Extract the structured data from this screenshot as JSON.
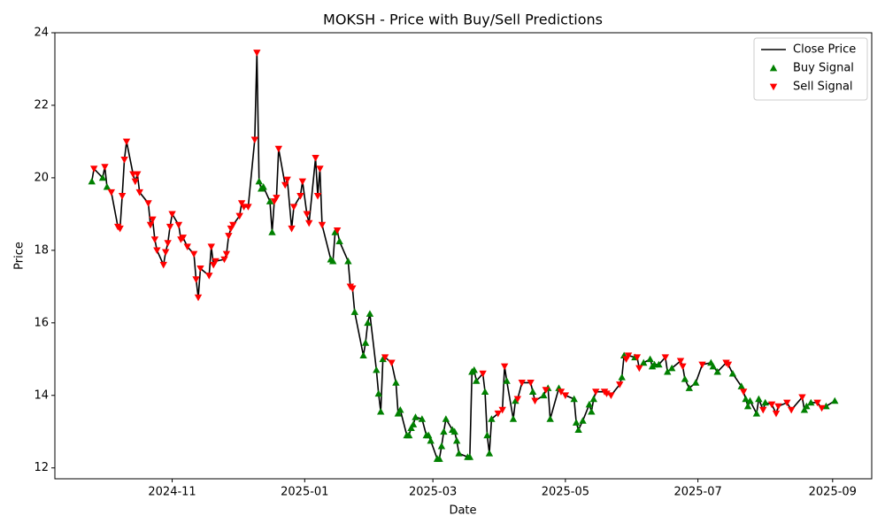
{
  "chart_data": {
    "type": "line",
    "title": "MOKSH - Price with Buy/Sell Predictions",
    "x_label": "Date",
    "y_label": "Price",
    "xlim": [
      "2024-09-08",
      "2025-09-19"
    ],
    "ylim": [
      11.7,
      24
    ],
    "xticks": [
      {
        "value": "2024-11-01",
        "label": "2024-11"
      },
      {
        "value": "2025-01-01",
        "label": "2025-01"
      },
      {
        "value": "2025-03-01",
        "label": "2025-03"
      },
      {
        "value": "2025-05-01",
        "label": "2025-05"
      },
      {
        "value": "2025-07-01",
        "label": "2025-07"
      },
      {
        "value": "2025-09-01",
        "label": "2025-09"
      }
    ],
    "yticks": [
      12,
      14,
      16,
      18,
      20,
      22,
      24
    ],
    "grid": false,
    "legend": "upper right",
    "series": [
      {
        "name": "Close Price",
        "color": "#000000",
        "marker": "line",
        "x": [
          "2024-09-25",
          "2024-09-26",
          "2024-09-30",
          "2024-10-01",
          "2024-10-02",
          "2024-10-04",
          "2024-10-07",
          "2024-10-08",
          "2024-10-09",
          "2024-10-10",
          "2024-10-11",
          "2024-10-14",
          "2024-10-15",
          "2024-10-16",
          "2024-10-17",
          "2024-10-21",
          "2024-10-22",
          "2024-10-23",
          "2024-10-24",
          "2024-10-25",
          "2024-10-28",
          "2024-10-29",
          "2024-10-30",
          "2024-10-31",
          "2024-11-01",
          "2024-11-04",
          "2024-11-05",
          "2024-11-06",
          "2024-11-08",
          "2024-11-11",
          "2024-11-12",
          "2024-11-13",
          "2024-11-14",
          "2024-11-18",
          "2024-11-19",
          "2024-11-20",
          "2024-11-21",
          "2024-11-25",
          "2024-11-26",
          "2024-11-27",
          "2024-11-28",
          "2024-11-29",
          "2024-12-02",
          "2024-12-03",
          "2024-12-04",
          "2024-12-06",
          "2024-12-09",
          "2024-12-10",
          "2024-12-11",
          "2024-12-12",
          "2024-12-13",
          "2024-12-16",
          "2024-12-17",
          "2024-12-18",
          "2024-12-19",
          "2024-12-20",
          "2024-12-23",
          "2024-12-24",
          "2024-12-26",
          "2024-12-27",
          "2024-12-30",
          "2024-12-31",
          "2025-01-02",
          "2025-01-03",
          "2025-01-06",
          "2025-01-07",
          "2025-01-08",
          "2025-01-09",
          "2025-01-13",
          "2025-01-14",
          "2025-01-15",
          "2025-01-16",
          "2025-01-17",
          "2025-01-21",
          "2025-01-22",
          "2025-01-23",
          "2025-01-24",
          "2025-01-28",
          "2025-01-29",
          "2025-01-30",
          "2025-01-31",
          "2025-02-03",
          "2025-02-04",
          "2025-02-05",
          "2025-02-06",
          "2025-02-07",
          "2025-02-10",
          "2025-02-12",
          "2025-02-13",
          "2025-02-14",
          "2025-02-17",
          "2025-02-18",
          "2025-02-19",
          "2025-02-20",
          "2025-02-21",
          "2025-02-24",
          "2025-02-26",
          "2025-02-27",
          "2025-02-28",
          "2025-03-03",
          "2025-03-04",
          "2025-03-05",
          "2025-03-06",
          "2025-03-07",
          "2025-03-10",
          "2025-03-11",
          "2025-03-12",
          "2025-03-13",
          "2025-03-17",
          "2025-03-18",
          "2025-03-19",
          "2025-03-20",
          "2025-03-21",
          "2025-03-24",
          "2025-03-25",
          "2025-03-26",
          "2025-03-27",
          "2025-03-28",
          "2025-03-31",
          "2025-04-02",
          "2025-04-03",
          "2025-04-04",
          "2025-04-07",
          "2025-04-08",
          "2025-04-09",
          "2025-04-11",
          "2025-04-15",
          "2025-04-16",
          "2025-04-17",
          "2025-04-21",
          "2025-04-22",
          "2025-04-23",
          "2025-04-24",
          "2025-04-28",
          "2025-04-29",
          "2025-05-01",
          "2025-05-05",
          "2025-05-06",
          "2025-05-07",
          "2025-05-09",
          "2025-05-12",
          "2025-05-13",
          "2025-05-14",
          "2025-05-15",
          "2025-05-19",
          "2025-05-20",
          "2025-05-22",
          "2025-05-26",
          "2025-05-27",
          "2025-05-28",
          "2025-05-29",
          "2025-05-30",
          "2025-06-02",
          "2025-06-03",
          "2025-06-04",
          "2025-06-06",
          "2025-06-09",
          "2025-06-10",
          "2025-06-11",
          "2025-06-13",
          "2025-06-16",
          "2025-06-17",
          "2025-06-19",
          "2025-06-23",
          "2025-06-24",
          "2025-06-25",
          "2025-06-27",
          "2025-06-30",
          "2025-07-03",
          "2025-07-07",
          "2025-07-08",
          "2025-07-10",
          "2025-07-14",
          "2025-07-15",
          "2025-07-17",
          "2025-07-21",
          "2025-07-22",
          "2025-07-23",
          "2025-07-24",
          "2025-07-25",
          "2025-07-28",
          "2025-07-29",
          "2025-07-31",
          "2025-08-01",
          "2025-08-04",
          "2025-08-06",
          "2025-08-07",
          "2025-08-11",
          "2025-08-13",
          "2025-08-18",
          "2025-08-19",
          "2025-08-20",
          "2025-08-22",
          "2025-08-25",
          "2025-08-27",
          "2025-08-29",
          "2025-09-02"
        ],
        "values": [
          19.9,
          20.25,
          20.0,
          20.3,
          19.75,
          19.6,
          18.65,
          18.6,
          19.5,
          20.5,
          21.0,
          20.1,
          19.9,
          20.1,
          19.6,
          19.3,
          18.7,
          18.85,
          18.3,
          18.0,
          17.6,
          17.95,
          18.2,
          18.65,
          19.0,
          18.7,
          18.3,
          18.35,
          18.1,
          17.9,
          17.2,
          16.7,
          17.5,
          17.3,
          18.1,
          17.6,
          17.7,
          17.75,
          17.9,
          18.4,
          18.6,
          18.7,
          18.95,
          19.3,
          19.2,
          19.2,
          21.05,
          23.45,
          19.9,
          19.7,
          19.75,
          19.35,
          18.5,
          19.35,
          19.45,
          20.8,
          19.8,
          19.95,
          18.6,
          19.2,
          19.5,
          19.9,
          19.0,
          18.75,
          20.55,
          19.5,
          20.25,
          18.7,
          17.75,
          17.7,
          18.5,
          18.55,
          18.25,
          17.7,
          17.0,
          16.95,
          16.3,
          15.1,
          15.45,
          16.0,
          16.25,
          14.7,
          14.05,
          13.55,
          15.0,
          15.05,
          14.9,
          14.35,
          13.5,
          13.6,
          12.9,
          12.9,
          13.1,
          13.2,
          13.4,
          13.35,
          12.9,
          12.9,
          12.75,
          12.25,
          12.25,
          12.6,
          13.0,
          13.35,
          13.05,
          13.0,
          12.75,
          12.4,
          12.3,
          12.3,
          14.65,
          14.7,
          14.4,
          14.6,
          14.1,
          12.9,
          12.4,
          13.35,
          13.5,
          13.6,
          14.8,
          14.4,
          13.35,
          13.85,
          13.9,
          14.35,
          14.35,
          14.1,
          13.85,
          14.0,
          14.15,
          14.2,
          13.35,
          14.2,
          14.1,
          14.0,
          13.9,
          13.25,
          13.05,
          13.3,
          13.75,
          13.55,
          13.9,
          14.1,
          14.1,
          14.05,
          14.0,
          14.3,
          14.5,
          15.1,
          15.0,
          15.1,
          15.05,
          15.05,
          14.75,
          14.9,
          15.0,
          14.8,
          14.85,
          14.85,
          15.05,
          14.65,
          14.75,
          14.95,
          14.8,
          14.45,
          14.2,
          14.35,
          14.85,
          14.9,
          14.8,
          14.65,
          14.9,
          14.85,
          14.6,
          14.25,
          14.1,
          13.9,
          13.7,
          13.85,
          13.5,
          13.9,
          13.6,
          13.8,
          13.75,
          13.5,
          13.7,
          13.8,
          13.6,
          13.95,
          13.6,
          13.7,
          13.8,
          13.8,
          13.65,
          13.7,
          13.85
        ]
      },
      {
        "name": "Buy Signal",
        "color": "#008000",
        "marker": "^",
        "x": [
          "2024-09-25",
          "2024-09-30",
          "2024-10-02",
          "2024-12-11",
          "2024-12-12",
          "2024-12-13",
          "2024-12-16",
          "2024-12-17",
          "2025-01-13",
          "2025-01-14",
          "2025-01-15",
          "2025-01-17",
          "2025-01-21",
          "2025-01-24",
          "2025-01-28",
          "2025-01-29",
          "2025-01-30",
          "2025-01-31",
          "2025-02-03",
          "2025-02-04",
          "2025-02-05",
          "2025-02-06",
          "2025-02-12",
          "2025-02-13",
          "2025-02-14",
          "2025-02-17",
          "2025-02-18",
          "2025-02-19",
          "2025-02-20",
          "2025-02-21",
          "2025-02-24",
          "2025-02-26",
          "2025-02-27",
          "2025-02-28",
          "2025-03-03",
          "2025-03-04",
          "2025-03-05",
          "2025-03-06",
          "2025-03-07",
          "2025-03-10",
          "2025-03-11",
          "2025-03-12",
          "2025-03-13",
          "2025-03-17",
          "2025-03-18",
          "2025-03-19",
          "2025-03-20",
          "2025-03-21",
          "2025-03-25",
          "2025-03-26",
          "2025-03-27",
          "2025-03-28",
          "2025-04-04",
          "2025-04-07",
          "2025-04-08",
          "2025-04-16",
          "2025-04-21",
          "2025-04-23",
          "2025-04-24",
          "2025-04-28",
          "2025-05-05",
          "2025-05-06",
          "2025-05-07",
          "2025-05-09",
          "2025-05-12",
          "2025-05-13",
          "2025-05-14",
          "2025-05-27",
          "2025-05-28",
          "2025-06-02",
          "2025-06-06",
          "2025-06-09",
          "2025-06-10",
          "2025-06-11",
          "2025-06-13",
          "2025-06-17",
          "2025-06-19",
          "2025-06-25",
          "2025-06-27",
          "2025-06-30",
          "2025-07-07",
          "2025-07-08",
          "2025-07-10",
          "2025-07-17",
          "2025-07-21",
          "2025-07-23",
          "2025-07-24",
          "2025-07-25",
          "2025-07-28",
          "2025-07-29",
          "2025-08-01",
          "2025-08-19",
          "2025-08-20",
          "2025-08-22",
          "2025-08-29",
          "2025-09-02"
        ],
        "values": [
          19.9,
          20.0,
          19.75,
          19.9,
          19.7,
          19.75,
          19.35,
          18.5,
          17.75,
          17.7,
          18.5,
          18.25,
          17.7,
          16.3,
          15.1,
          15.45,
          16.0,
          16.25,
          14.7,
          14.05,
          13.55,
          15.0,
          14.35,
          13.5,
          13.6,
          12.9,
          12.9,
          13.1,
          13.2,
          13.4,
          13.35,
          12.9,
          12.9,
          12.75,
          12.25,
          12.25,
          12.6,
          13.0,
          13.35,
          13.05,
          13.0,
          12.75,
          12.4,
          12.3,
          12.3,
          14.65,
          14.7,
          14.4,
          14.1,
          12.9,
          12.4,
          13.35,
          14.4,
          13.35,
          13.85,
          14.1,
          14.0,
          14.2,
          13.35,
          14.2,
          13.9,
          13.25,
          13.05,
          13.3,
          13.75,
          13.55,
          13.9,
          14.5,
          15.1,
          15.05,
          14.9,
          15.0,
          14.8,
          14.85,
          14.85,
          14.65,
          14.75,
          14.45,
          14.2,
          14.35,
          14.9,
          14.8,
          14.65,
          14.6,
          14.25,
          13.9,
          13.7,
          13.85,
          13.5,
          13.9,
          13.8,
          13.6,
          13.7,
          13.8,
          13.7,
          13.85
        ]
      },
      {
        "name": "Sell Signal",
        "color": "#ff0000",
        "marker": "v",
        "x": [
          "2024-09-26",
          "2024-10-01",
          "2024-10-04",
          "2024-10-07",
          "2024-10-08",
          "2024-10-09",
          "2024-10-10",
          "2024-10-11",
          "2024-10-14",
          "2024-10-15",
          "2024-10-16",
          "2024-10-17",
          "2024-10-21",
          "2024-10-22",
          "2024-10-23",
          "2024-10-24",
          "2024-10-25",
          "2024-10-28",
          "2024-10-29",
          "2024-10-30",
          "2024-10-31",
          "2024-11-01",
          "2024-11-04",
          "2024-11-05",
          "2024-11-06",
          "2024-11-08",
          "2024-11-11",
          "2024-11-12",
          "2024-11-13",
          "2024-11-14",
          "2024-11-18",
          "2024-11-19",
          "2024-11-20",
          "2024-11-21",
          "2024-11-25",
          "2024-11-26",
          "2024-11-27",
          "2024-11-28",
          "2024-11-29",
          "2024-12-02",
          "2024-12-03",
          "2024-12-04",
          "2024-12-06",
          "2024-12-09",
          "2024-12-10",
          "2024-12-18",
          "2024-12-19",
          "2024-12-20",
          "2024-12-23",
          "2024-12-24",
          "2024-12-26",
          "2024-12-27",
          "2024-12-30",
          "2024-12-31",
          "2025-01-02",
          "2025-01-03",
          "2025-01-06",
          "2025-01-07",
          "2025-01-08",
          "2025-01-09",
          "2025-01-16",
          "2025-01-22",
          "2025-01-23",
          "2025-02-07",
          "2025-02-10",
          "2025-03-24",
          "2025-03-31",
          "2025-04-02",
          "2025-04-03",
          "2025-04-09",
          "2025-04-11",
          "2025-04-15",
          "2025-04-17",
          "2025-04-22",
          "2025-04-29",
          "2025-05-01",
          "2025-05-15",
          "2025-05-19",
          "2025-05-20",
          "2025-05-22",
          "2025-05-26",
          "2025-05-29",
          "2025-05-30",
          "2025-06-03",
          "2025-06-04",
          "2025-06-16",
          "2025-06-23",
          "2025-06-24",
          "2025-07-03",
          "2025-07-14",
          "2025-07-15",
          "2025-07-22",
          "2025-07-31",
          "2025-08-04",
          "2025-08-06",
          "2025-08-07",
          "2025-08-11",
          "2025-08-13",
          "2025-08-18",
          "2025-08-25",
          "2025-08-27"
        ],
        "values": [
          20.25,
          20.3,
          19.6,
          18.65,
          18.6,
          19.5,
          20.5,
          21.0,
          20.1,
          19.9,
          20.1,
          19.6,
          19.3,
          18.7,
          18.85,
          18.3,
          18.0,
          17.6,
          17.95,
          18.2,
          18.65,
          19.0,
          18.7,
          18.3,
          18.35,
          18.1,
          17.9,
          17.2,
          16.7,
          17.5,
          17.3,
          18.1,
          17.6,
          17.7,
          17.75,
          17.9,
          18.4,
          18.6,
          18.7,
          18.95,
          19.3,
          19.2,
          19.2,
          21.05,
          23.45,
          19.35,
          19.45,
          20.8,
          19.8,
          19.95,
          18.6,
          19.2,
          19.5,
          19.9,
          19.0,
          18.75,
          20.55,
          19.5,
          20.25,
          18.7,
          18.55,
          17.0,
          16.95,
          15.05,
          14.9,
          14.6,
          13.5,
          13.6,
          14.8,
          13.9,
          14.35,
          14.35,
          13.85,
          14.15,
          14.1,
          14.0,
          14.1,
          14.1,
          14.05,
          14.0,
          14.3,
          15.0,
          15.1,
          15.05,
          14.75,
          15.05,
          14.95,
          14.8,
          14.85,
          14.9,
          14.85,
          14.1,
          13.6,
          13.75,
          13.5,
          13.7,
          13.8,
          13.6,
          13.95,
          13.8,
          13.65
        ]
      }
    ]
  }
}
